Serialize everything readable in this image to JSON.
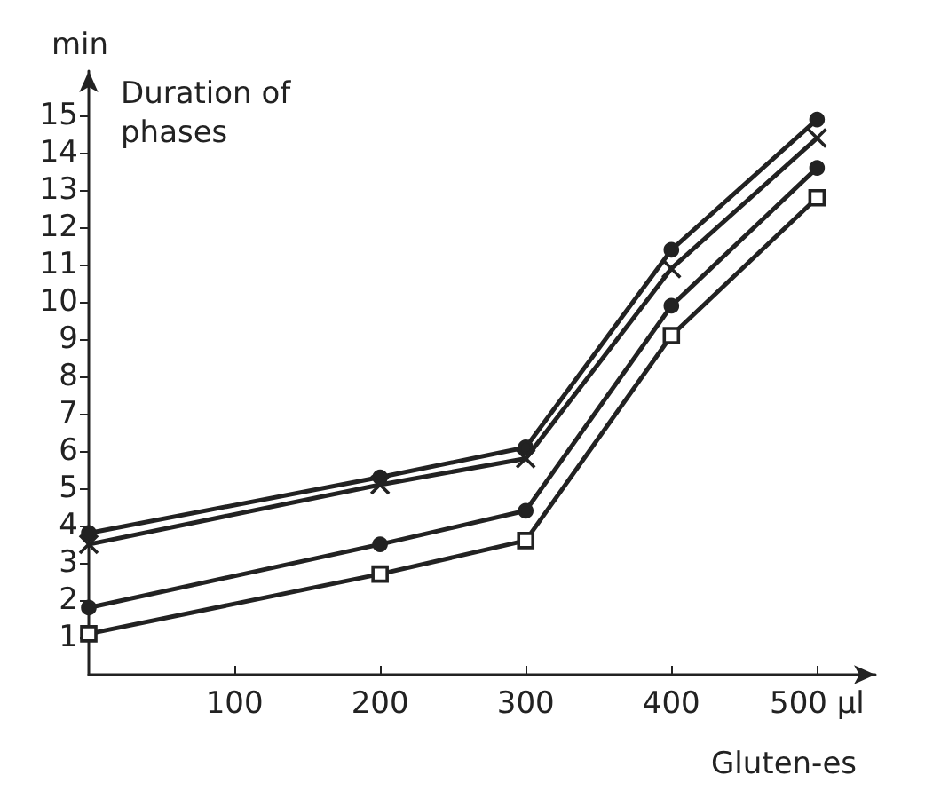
{
  "chart_data": {
    "type": "line",
    "xlabel": "Gluten-es",
    "ylabel": "min",
    "annotations": [
      "Duration of phases"
    ],
    "x": [
      0,
      200,
      300,
      400,
      500
    ],
    "series": [
      {
        "color": "#222222",
        "marker": "circle",
        "values": [
          3.8,
          5.3,
          6.1,
          11.4,
          14.9
        ]
      },
      {
        "color": "#222222",
        "marker": "cross",
        "values": [
          3.5,
          5.1,
          5.8,
          10.9,
          14.4
        ]
      },
      {
        "color": "#222222",
        "marker": "circle",
        "values": [
          1.8,
          3.5,
          4.4,
          9.9,
          13.6
        ]
      },
      {
        "color": "#222222",
        "marker": "square",
        "values": [
          1.1,
          2.7,
          3.6,
          9.1,
          12.8
        ]
      }
    ],
    "xlim": [
      0,
      540
    ],
    "ylim": [
      0,
      16.2
    ],
    "xticks": [
      100,
      200,
      300,
      400,
      {
        "value": 500,
        "label": "500 µl"
      }
    ],
    "yticks": [
      1,
      2,
      3,
      4,
      5,
      6,
      7,
      8,
      9,
      10,
      11,
      12,
      13,
      14,
      15
    ],
    "grid": false,
    "line_style": "solid"
  }
}
